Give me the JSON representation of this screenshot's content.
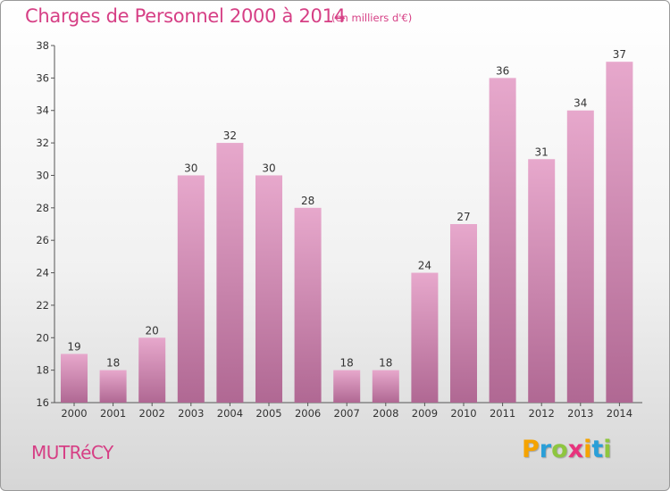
{
  "header": {
    "title": "Charges de Personnel 2000 à 2014",
    "subtitle": "(en milliers d'€)"
  },
  "footer": {
    "place": "MUTRéCY",
    "logo_letters": [
      "P",
      "r",
      "o",
      "x",
      "i",
      "t",
      "i"
    ],
    "logo_colors": [
      "#f5a300",
      "#2a9fd8",
      "#8ec63f",
      "#e8337d",
      "#f5a300",
      "#2a9fd8",
      "#8ec63f"
    ]
  },
  "chart_data": {
    "type": "bar",
    "categories": [
      "2000",
      "2001",
      "2002",
      "2003",
      "2004",
      "2005",
      "2006",
      "2007",
      "2008",
      "2009",
      "2010",
      "2011",
      "2012",
      "2013",
      "2014"
    ],
    "values": [
      19,
      18,
      20,
      30,
      32,
      30,
      28,
      18,
      18,
      24,
      27,
      36,
      31,
      34,
      37
    ],
    "xlabel": "",
    "ylabel": "",
    "ylim": [
      16,
      38
    ],
    "yticks": [
      16,
      18,
      20,
      22,
      24,
      26,
      28,
      30,
      32,
      34,
      36,
      38
    ],
    "grid": false,
    "bar_color_top": "#e7a8cc",
    "bar_color_bottom": "#b06893"
  }
}
